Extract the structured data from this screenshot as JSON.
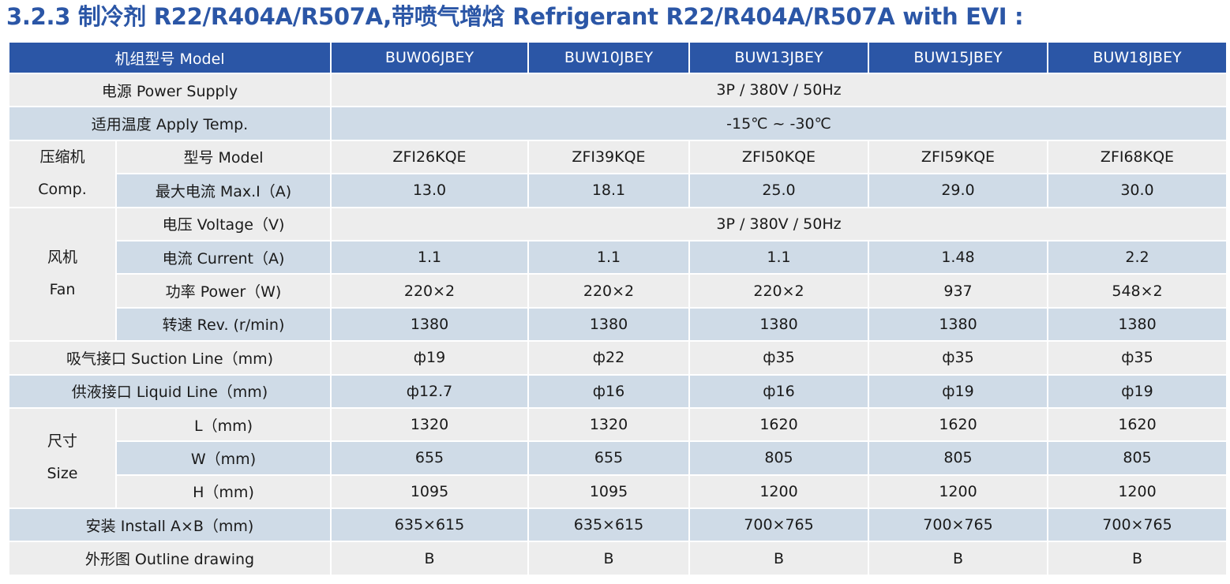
{
  "title": "3.2.3 制冷剂 R22/R404A/R507A,带喷气增焓 Refrigerant R22/R404A/R507A with EVI :",
  "table": {
    "header": {
      "label": "机组型号 Model",
      "models": [
        "BUW06JBEY",
        "BUW10JBEY",
        "BUW13JBEY",
        "BUW15JBEY",
        "BUW18JBEY"
      ]
    },
    "power_supply": {
      "label": "电源 Power Supply",
      "value": "3P / 380V / 50Hz"
    },
    "apply_temp": {
      "label": "适用温度 Apply Temp.",
      "value": "-15℃ ~ -30℃"
    },
    "compressor": {
      "group_cn": "压缩机",
      "group_en": "Comp.",
      "model": {
        "label": "型号 Model",
        "values": [
          "ZFI26KQE",
          "ZFI39KQE",
          "ZFI50KQE",
          "ZFI59KQE",
          "ZFI68KQE"
        ]
      },
      "max_current": {
        "label": "最大电流 Max.I（A)",
        "values": [
          "13.0",
          "18.1",
          "25.0",
          "29.0",
          "30.0"
        ]
      }
    },
    "fan": {
      "group_cn": "风机",
      "group_en": "Fan",
      "voltage": {
        "label": "电压 Voltage（V)",
        "value": "3P / 380V / 50Hz"
      },
      "current": {
        "label": "电流 Current（A)",
        "values": [
          "1.1",
          "1.1",
          "1.1",
          "1.48",
          "2.2"
        ]
      },
      "power": {
        "label": "功率 Power（W)",
        "values": [
          "220×2",
          "220×2",
          "220×2",
          "937",
          "548×2"
        ]
      },
      "rev": {
        "label": "转速 Rev. (r/min)",
        "values": [
          "1380",
          "1380",
          "1380",
          "1380",
          "1380"
        ]
      }
    },
    "suction_line": {
      "label": "吸气接口 Suction Line（mm)",
      "values": [
        "ф19",
        "ф22",
        "ф35",
        "ф35",
        "ф35"
      ]
    },
    "liquid_line": {
      "label": "供液接口 Liquid Line（mm)",
      "values": [
        "ф12.7",
        "ф16",
        "ф16",
        "ф19",
        "ф19"
      ]
    },
    "size": {
      "group_cn": "尺寸",
      "group_en": "Size",
      "l": {
        "label": "L（mm)",
        "values": [
          "1320",
          "1320",
          "1620",
          "1620",
          "1620"
        ]
      },
      "w": {
        "label": "W（mm)",
        "values": [
          "655",
          "655",
          "805",
          "805",
          "805"
        ]
      },
      "h": {
        "label": "H（mm)",
        "values": [
          "1095",
          "1095",
          "1200",
          "1200",
          "1200"
        ]
      }
    },
    "install": {
      "label": "安装 Install A×B（mm)",
      "values": [
        "635×615",
        "635×615",
        "700×765",
        "700×765",
        "700×765"
      ]
    },
    "outline": {
      "label": "外形图 Outline drawing",
      "values": [
        "B",
        "B",
        "B",
        "B",
        "B"
      ]
    }
  },
  "colors": {
    "title": "#2b56a6",
    "header_bg": "#2b56a6",
    "row_gray": "#ededed",
    "row_blue": "#cfdbe7"
  }
}
